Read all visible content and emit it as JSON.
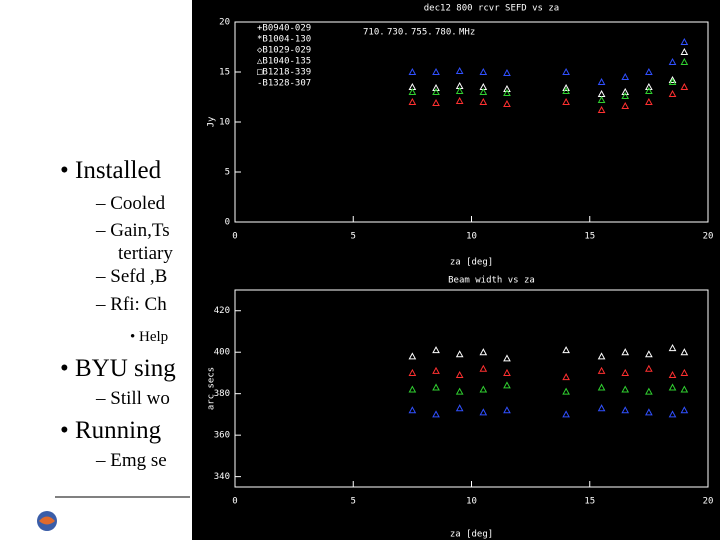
{
  "slide": {
    "bullets": [
      {
        "text": "• Installed",
        "level": 1
      },
      {
        "text": "– Cooled",
        "level": 2
      },
      {
        "text": "– Gain,Ts",
        "level": 2
      },
      {
        "text": "tertiary",
        "level": 2
      },
      {
        "text": "– Sefd ,B",
        "level": 2
      },
      {
        "text": "– Rfi: Ch",
        "level": 2
      },
      {
        "text": "• Help",
        "level": 3
      },
      {
        "text": "• BYU sing",
        "level": 1
      },
      {
        "text": "– Still wo",
        "level": 2
      },
      {
        "text": "• Running",
        "level": 1
      },
      {
        "text": "– Emg se",
        "level": 2
      }
    ]
  },
  "chart_data": [
    {
      "type": "scatter",
      "title": "dec12 800 rcvr SEFD vs za",
      "xlabel": "za [deg]",
      "ylabel": "Jy",
      "xlim": [
        0,
        20
      ],
      "ylim": [
        0,
        20
      ],
      "xticks": [
        0,
        5,
        10,
        15,
        20
      ],
      "yticks": [
        0,
        5,
        10,
        15,
        20
      ],
      "sources": [
        "+B0940-029",
        "*B1004-130",
        "◇B1029-029",
        "△B1040-135",
        "□B1218-339",
        "-B1328-307"
      ],
      "unit": "MHz",
      "x": [
        7.5,
        8.5,
        9.5,
        10.5,
        11.5,
        14,
        15.5,
        16.5,
        17.5,
        18.5,
        19
      ],
      "series": [
        {
          "name": "710.",
          "color": "#ffffff",
          "values": [
            13.5,
            13.4,
            13.6,
            13.5,
            13.3,
            13.4,
            12.8,
            13.0,
            13.5,
            14.2,
            17
          ]
        },
        {
          "name": "730.",
          "color": "#ff3030",
          "values": [
            12,
            11.9,
            12.1,
            12,
            11.8,
            12,
            11.2,
            11.6,
            12,
            12.8,
            13.5
          ]
        },
        {
          "name": "755.",
          "color": "#30d030",
          "values": [
            13,
            13,
            13.1,
            13,
            12.9,
            13.1,
            12.2,
            12.6,
            13.1,
            14,
            16
          ]
        },
        {
          "name": "780.",
          "color": "#3050ff",
          "values": [
            15,
            15,
            15.1,
            15,
            14.9,
            15,
            14,
            14.5,
            15,
            16,
            18
          ]
        }
      ]
    },
    {
      "type": "scatter",
      "title": "Beam width vs za",
      "xlabel": "za [deg]",
      "ylabel": "arc secs",
      "xlim": [
        0,
        20
      ],
      "ylim": [
        335,
        430
      ],
      "xticks": [
        0,
        5,
        10,
        15,
        20
      ],
      "yticks": [
        340,
        360,
        380,
        400,
        420
      ],
      "x": [
        7.5,
        8.5,
        9.5,
        10.5,
        11.5,
        14,
        15.5,
        16.5,
        17.5,
        18.5,
        19
      ],
      "series": [
        {
          "color": "#ffffff",
          "values": [
            398,
            401,
            399,
            400,
            397,
            401,
            398,
            400,
            399,
            402,
            400
          ]
        },
        {
          "color": "#ff3030",
          "values": [
            390,
            391,
            389,
            392,
            390,
            388,
            391,
            390,
            392,
            389,
            390
          ]
        },
        {
          "color": "#30d030",
          "values": [
            382,
            383,
            381,
            382,
            384,
            381,
            383,
            382,
            381,
            383,
            382
          ]
        },
        {
          "color": "#3050ff",
          "values": [
            372,
            370,
            373,
            371,
            372,
            370,
            373,
            372,
            371,
            370,
            372
          ]
        }
      ]
    }
  ]
}
